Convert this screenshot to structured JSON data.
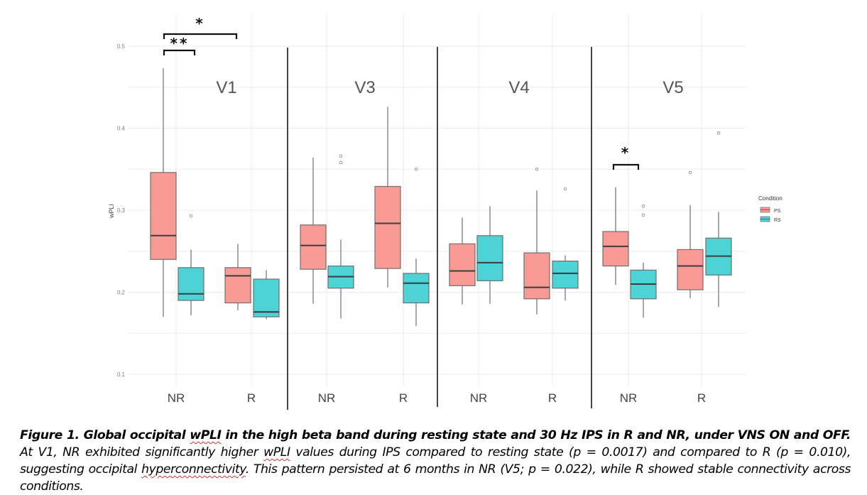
{
  "chart_data": {
    "type": "boxplot",
    "title": "",
    "xlabel": "",
    "ylabel": "wPLI",
    "ylim": [
      0.085,
      0.5
    ],
    "yticks": [
      "0.1",
      "0.2",
      "0.3",
      "0.4",
      "0.5"
    ],
    "ytick_values": [
      0.1,
      0.2,
      0.3,
      0.4,
      0.5
    ],
    "grid": true,
    "legend": {
      "title": "Condition",
      "placement": "right",
      "entries": [
        {
          "label": "PS",
          "color": "#F8766D"
        },
        {
          "label": "RS",
          "color": "#00BFC4"
        }
      ]
    },
    "categories": [
      "NR",
      "R"
    ],
    "panels": [
      {
        "label": "V1",
        "groups": [
          {
            "category": "NR",
            "condition": "PS",
            "min": 0.17,
            "q1": 0.24,
            "median": 0.269,
            "q3": 0.346,
            "max": 0.473,
            "outliers": []
          },
          {
            "category": "NR",
            "condition": "RS",
            "min": 0.172,
            "q1": 0.19,
            "median": 0.198,
            "q3": 0.23,
            "max": 0.252,
            "outliers": [
              0.293
            ]
          },
          {
            "category": "R",
            "condition": "PS",
            "min": 0.178,
            "q1": 0.187,
            "median": 0.22,
            "q3": 0.23,
            "max": 0.259,
            "outliers": []
          },
          {
            "category": "R",
            "condition": "RS",
            "min": 0.167,
            "q1": 0.17,
            "median": 0.176,
            "q3": 0.216,
            "max": 0.227,
            "outliers": []
          }
        ],
        "significance": [
          {
            "label": "**",
            "from": "NR.PS",
            "to": "NR.RS"
          },
          {
            "label": "*",
            "from": "NR.PS",
            "to": "R.PS"
          }
        ]
      },
      {
        "label": "V3",
        "groups": [
          {
            "category": "NR",
            "condition": "PS",
            "min": 0.186,
            "q1": 0.228,
            "median": 0.257,
            "q3": 0.282,
            "max": 0.364,
            "outliers": []
          },
          {
            "category": "NR",
            "condition": "RS",
            "min": 0.168,
            "q1": 0.205,
            "median": 0.219,
            "q3": 0.232,
            "max": 0.264,
            "outliers": [
              0.358,
              0.366
            ]
          },
          {
            "category": "R",
            "condition": "PS",
            "min": 0.206,
            "q1": 0.229,
            "median": 0.284,
            "q3": 0.329,
            "max": 0.426,
            "outliers": []
          },
          {
            "category": "R",
            "condition": "RS",
            "min": 0.159,
            "q1": 0.187,
            "median": 0.211,
            "q3": 0.223,
            "max": 0.241,
            "outliers": [
              0.35
            ]
          }
        ],
        "significance": []
      },
      {
        "label": "V4",
        "groups": [
          {
            "category": "NR",
            "condition": "PS",
            "min": 0.185,
            "q1": 0.208,
            "median": 0.226,
            "q3": 0.259,
            "max": 0.291,
            "outliers": []
          },
          {
            "category": "NR",
            "condition": "RS",
            "min": 0.186,
            "q1": 0.214,
            "median": 0.236,
            "q3": 0.269,
            "max": 0.305,
            "outliers": []
          },
          {
            "category": "R",
            "condition": "PS",
            "min": 0.173,
            "q1": 0.192,
            "median": 0.206,
            "q3": 0.248,
            "max": 0.324,
            "outliers": [
              0.35
            ]
          },
          {
            "category": "R",
            "condition": "RS",
            "min": 0.19,
            "q1": 0.205,
            "median": 0.223,
            "q3": 0.238,
            "max": 0.245,
            "outliers": [
              0.326
            ]
          }
        ],
        "significance": []
      },
      {
        "label": "V5",
        "groups": [
          {
            "category": "NR",
            "condition": "PS",
            "min": 0.209,
            "q1": 0.232,
            "median": 0.256,
            "q3": 0.274,
            "max": 0.328,
            "outliers": []
          },
          {
            "category": "NR",
            "condition": "RS",
            "min": 0.169,
            "q1": 0.192,
            "median": 0.21,
            "q3": 0.227,
            "max": 0.236,
            "outliers": [
              0.294,
              0.305
            ]
          },
          {
            "category": "R",
            "condition": "PS",
            "min": 0.193,
            "q1": 0.203,
            "median": 0.232,
            "q3": 0.252,
            "max": 0.306,
            "outliers": [
              0.346
            ]
          },
          {
            "category": "R",
            "condition": "RS",
            "min": 0.182,
            "q1": 0.221,
            "median": 0.244,
            "q3": 0.266,
            "max": 0.298,
            "outliers": [
              0.394
            ]
          }
        ],
        "significance": [
          {
            "label": "*",
            "from": "NR.PS",
            "to": "NR.RS"
          }
        ]
      }
    ]
  },
  "caption": {
    "bold_prefix": "Figure 1. Global occipital ",
    "bold_term": "wPLI",
    "bold_suffix": " in the high beta band during resting state and 30 Hz IPS in R and NR, under VNS ON and OFF.",
    "text_1": " At V1, NR exhibited significantly higher ",
    "term_2": "wPLI",
    "text_2": " values during IPS compared to resting state (p = 0.0017) and compared to R (p = 0.010), suggesting occipital ",
    "term_3": "hyperconnectivity",
    "text_3": ". This pattern persisted at 6 months in NR (V5; p = 0.022), while R showed stable connectivity across conditions."
  }
}
